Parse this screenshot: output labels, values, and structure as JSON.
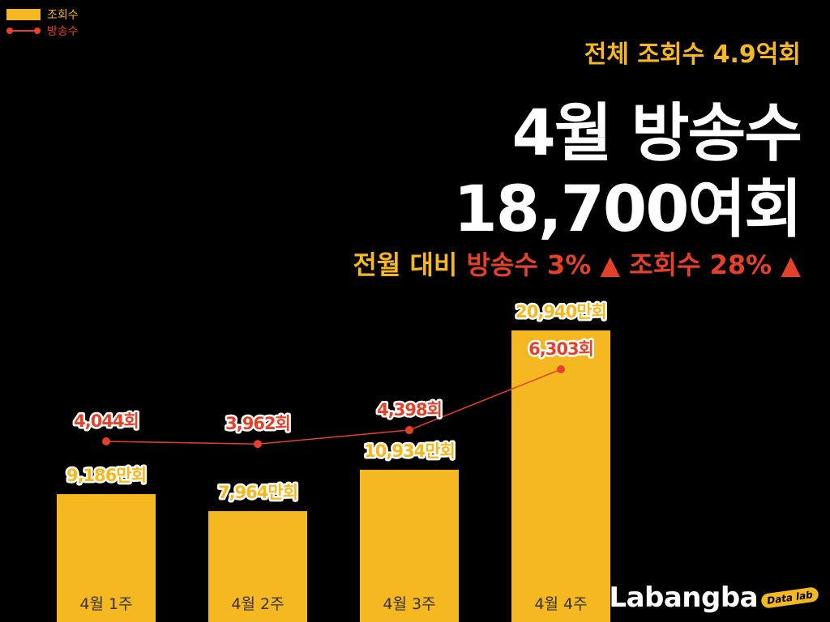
{
  "legend": [
    {
      "label": "조회수",
      "color": "#F5B820",
      "kind": "bar"
    },
    {
      "label": "방송수",
      "color": "#E2422A",
      "kind": "line"
    }
  ],
  "headline": {
    "total_views": "전체 조회수 4.9억회",
    "title_line1": "4월 방송수",
    "title_line2": "18,700여회",
    "compare": {
      "prefix": "전월 대비",
      "broadcast": "방송수 3%",
      "broadcast_arrow": "▲",
      "views": "조회수 28%",
      "views_arrow": "▲"
    }
  },
  "brand": {
    "name": "Labangba",
    "tag": "Data lab"
  },
  "colors": {
    "views": "#F5B820",
    "broadcasts": "#E2422A",
    "background": "#000000"
  },
  "chart_data": {
    "type": "bar",
    "categories": [
      "4월 1주",
      "4월 2주",
      "4월 3주",
      "4월 4주"
    ],
    "series": [
      {
        "name": "조회수",
        "type": "bar",
        "values": [
          9186,
          7964,
          10934,
          20940
        ],
        "labels": [
          "9,186만회",
          "7,964만회",
          "10,934만회",
          "20,940만회"
        ]
      },
      {
        "name": "방송수",
        "type": "line",
        "values": [
          4044,
          3962,
          4398,
          6303
        ],
        "labels": [
          "4,044회",
          "3,962회",
          "4,398회",
          "6,303회"
        ]
      }
    ]
  }
}
